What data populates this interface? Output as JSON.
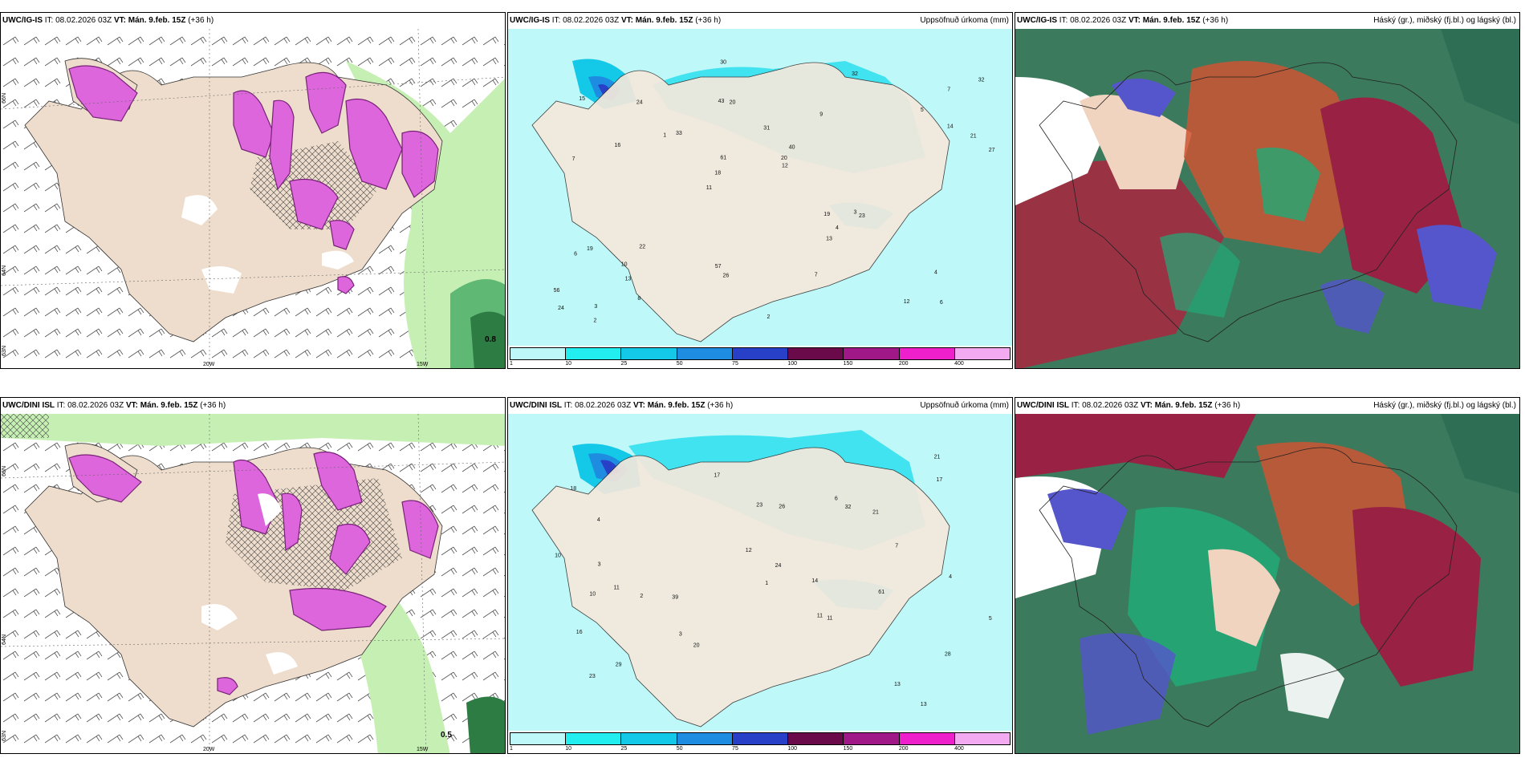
{
  "colors": {
    "land": "#eeddcc",
    "ice": "#ffffff",
    "snow_purple": "#dd66dd",
    "snow_dark": "#772277",
    "rain_green": "#bbeeaa",
    "precip_light": "#aaf4f4",
    "precip_cyan": "#22ddee",
    "precip_blue": "#2266cc",
    "cloud_red": "#992244",
    "cloud_green": "#22aa77",
    "cloud_blue": "#5555cc",
    "cloud_orange": "#cc5533"
  },
  "panels": {
    "top_left": {
      "model": "UWC/IG-IS",
      "it": "IT: 08.02.2026 03Z",
      "vt": "VT: Mán. 9.feb. 15Z",
      "lead": "(+36 h)",
      "right_title": "",
      "lon_labels": [
        "20W",
        "15W"
      ],
      "lat_labels": [
        "66N",
        "64N",
        "63N"
      ],
      "corner_value": "0.8"
    },
    "top_mid": {
      "model": "UWC/IG-IS",
      "it": "IT: 08.02.2026 03Z",
      "vt": "VT: Mán. 9.feb. 15Z",
      "lead": "(+36 h)",
      "right_title": "Uppsöfnuð úrkoma (mm)"
    },
    "top_right": {
      "model": "UWC/IG-IS",
      "it": "IT: 08.02.2026 03Z",
      "vt": "VT: Mán. 9.feb. 15Z",
      "lead": "(+36 h)",
      "right_title": "Háský (gr.), miðský (fj.bl.) og lágský (bl.)"
    },
    "bottom_left": {
      "model": "UWC/DINI ISL",
      "it": "IT: 08.02.2026 03Z",
      "vt": "VT: Mán. 9.feb. 15Z",
      "lead": "(+36 h)",
      "right_title": "",
      "lon_labels": [
        "20W",
        "15W"
      ],
      "lat_labels": [
        "66N",
        "64N",
        "63N"
      ],
      "corner_value": "0.5"
    },
    "bottom_mid": {
      "model": "UWC/DINI ISL",
      "it": "IT: 08.02.2026 03Z",
      "vt": "VT: Mán. 9.feb. 15Z",
      "lead": "(+36 h)",
      "right_title": "Uppsöfnuð úrkoma (mm)"
    },
    "bottom_right": {
      "model": "UWC/DINI ISL",
      "it": "IT: 08.02.2026 03Z",
      "vt": "VT: Mán. 9.feb. 15Z",
      "lead": "(+36 h)",
      "right_title": "Háský (gr.), miðský (fj.bl.) og lágský (bl.)"
    }
  },
  "colorbar": {
    "ticks": [
      "1",
      "10",
      "25",
      "50",
      "75",
      "100",
      "150",
      "200",
      "400"
    ],
    "colors": [
      "#bff8f8",
      "#22eef0",
      "#14c8e8",
      "#1e8ce0",
      "#2840c8",
      "#6a0a4a",
      "#a01888",
      "#ee20cc",
      "#f4aaf0"
    ]
  },
  "precip_values_top": [
    "6",
    "7",
    "7",
    "11",
    "9",
    "3",
    "43",
    "31",
    "19",
    "33",
    "56",
    "13",
    "20",
    "40",
    "23",
    "15",
    "30",
    "27",
    "19",
    "14",
    "18",
    "57",
    "61",
    "24",
    "32",
    "22",
    "12",
    "4",
    "3",
    "2",
    "1",
    "16",
    "13",
    "8",
    "21",
    "20",
    "24",
    "26",
    "12",
    "6",
    "5",
    "32",
    "4",
    "7",
    "10",
    "2"
  ],
  "precip_values_bottom": [
    "13",
    "11",
    "11",
    "18",
    "28",
    "4",
    "29",
    "39",
    "21",
    "23",
    "32",
    "13",
    "20",
    "17",
    "14",
    "16",
    "61",
    "24",
    "10",
    "23",
    "21",
    "26",
    "7",
    "5",
    "4",
    "3",
    "2",
    "1",
    "12",
    "17",
    "11",
    "10",
    "3",
    "6"
  ]
}
